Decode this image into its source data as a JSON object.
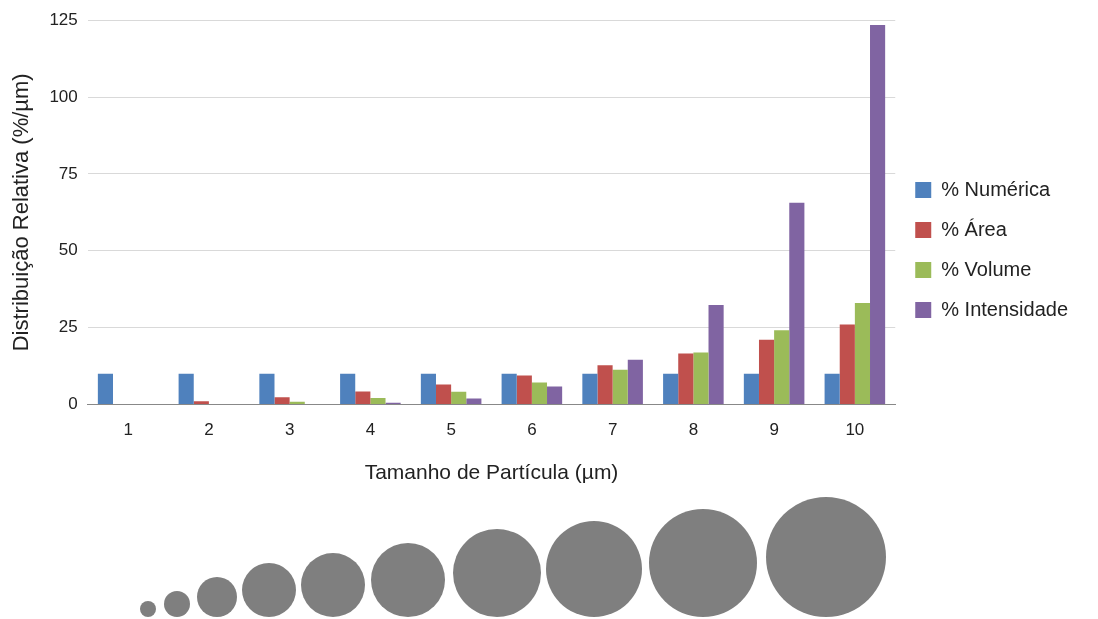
{
  "chart_data": {
    "type": "bar",
    "xlabel": "Tamanho de Partícula (µm)",
    "ylabel": "Distribuição Relativa (%/µm)",
    "categories": [
      "1",
      "2",
      "3",
      "4",
      "5",
      "6",
      "7",
      "8",
      "9",
      "10"
    ],
    "series": [
      {
        "name": "% Numérica",
        "color": "#4f81bd",
        "values": [
          10,
          10,
          10,
          10,
          10,
          10,
          10,
          10,
          10,
          10
        ]
      },
      {
        "name": "% Área",
        "color": "#c0504d",
        "values": [
          null,
          1.0,
          2.3,
          4.2,
          6.5,
          9.4,
          12.7,
          16.6,
          21.0,
          26.0
        ]
      },
      {
        "name": "% Volume",
        "color": "#9bbb59",
        "values": [
          null,
          null,
          0.9,
          2.1,
          4.1,
          7.1,
          11.3,
          16.9,
          24.1,
          33.0
        ]
      },
      {
        "name": "% Intensidade",
        "color": "#8064a2",
        "values": [
          0,
          0,
          0.1,
          0.5,
          1.9,
          5.8,
          14.5,
          32.3,
          65.6,
          123.4
        ]
      }
    ],
    "ylim": [
      0,
      125
    ],
    "yticks": [
      0,
      25,
      50,
      75,
      100,
      125
    ],
    "grid": "y",
    "legend": "right"
  }
}
